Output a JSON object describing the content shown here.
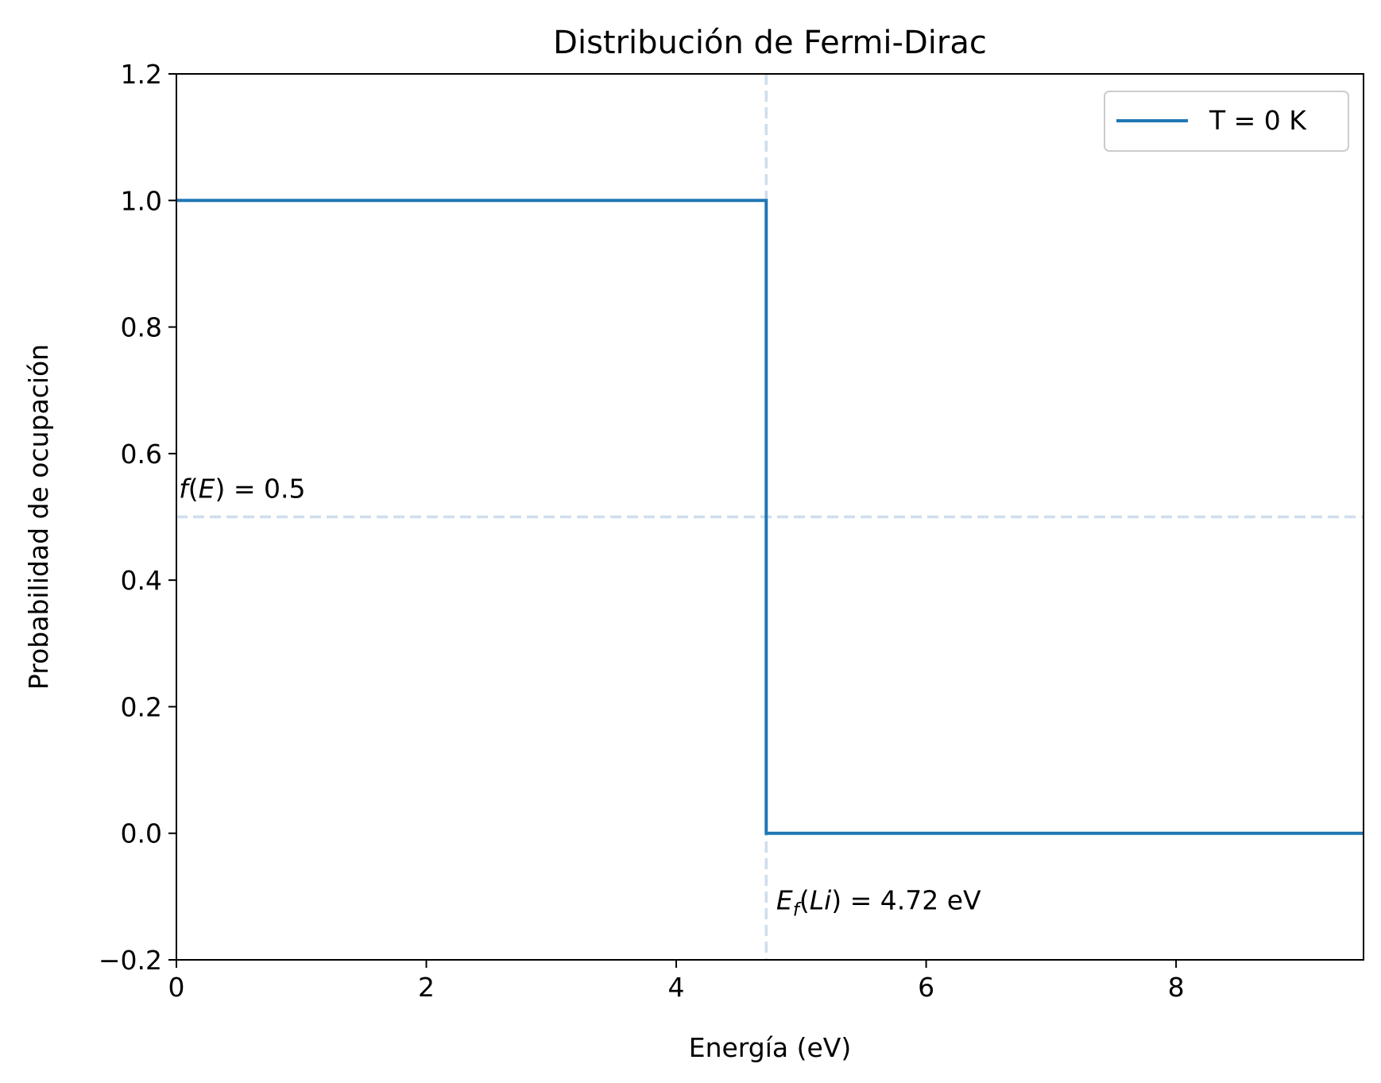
{
  "chart_data": {
    "type": "line",
    "title": "Distribución de Fermi-Dirac",
    "xlabel": "Energía (eV)",
    "ylabel": "Probabilidad de ocupación",
    "xlim": [
      0,
      9.5
    ],
    "ylim": [
      -0.2,
      1.2
    ],
    "x_ticks": [
      0,
      2,
      4,
      6,
      8
    ],
    "y_ticks": [
      -0.2,
      0.0,
      0.2,
      0.4,
      0.6,
      0.8,
      1.0,
      1.2
    ],
    "x_tick_labels": [
      "0",
      "2",
      "4",
      "6",
      "8"
    ],
    "y_tick_labels": [
      "−0.2",
      "0.0",
      "0.2",
      "0.4",
      "0.6",
      "0.8",
      "1.0",
      "1.2"
    ],
    "grid": false,
    "legend_position": "top-right",
    "series": [
      {
        "name": "T = 0 K",
        "color": "#1f77b4",
        "x": [
          0,
          4.72,
          4.72,
          9.5
        ],
        "y": [
          1,
          1,
          0,
          0
        ]
      }
    ],
    "reference_lines": [
      {
        "orientation": "horizontal",
        "value": 0.5,
        "style": "dashed",
        "color": "#cfdeec"
      },
      {
        "orientation": "vertical",
        "value": 4.72,
        "style": "dashed",
        "color": "#cfdeec"
      }
    ],
    "annotations": [
      {
        "x": 0.02,
        "y": 0.53,
        "parts": [
          "f",
          "(",
          "E",
          ")",
          " = 0.5"
        ]
      },
      {
        "x": 4.8,
        "y": -0.12,
        "parts": [
          "E",
          "f",
          "(",
          "Li",
          ")",
          " = 4.72 eV"
        ]
      }
    ]
  }
}
